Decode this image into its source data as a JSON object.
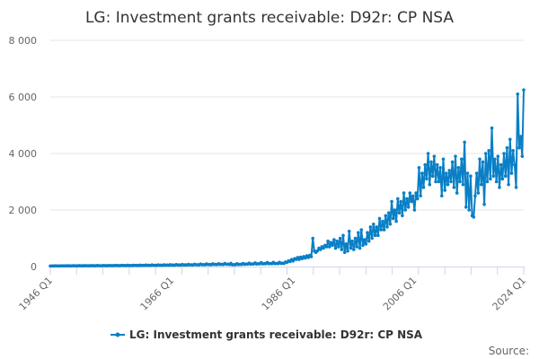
{
  "chart_data": {
    "type": "line",
    "title": "LG: Investment grants receivable: D92r: CP NSA",
    "xlabel": "",
    "ylabel": "",
    "start_period": "1946 Q1",
    "end_period": "2024 Q1",
    "frequency": "quarterly",
    "ylim": [
      0,
      8000
    ],
    "yticks": [
      0,
      2000,
      4000,
      6000,
      8000
    ],
    "ytick_labels": [
      "0",
      "2 000",
      "4 000",
      "6 000",
      "8 000"
    ],
    "xtick_labels": [
      "1946 Q1",
      "1966 Q1",
      "1986 Q1",
      "2006 Q1",
      "2024 Q1"
    ],
    "xtick_label_index": [
      0,
      80,
      160,
      240,
      312
    ],
    "grid": true,
    "legend_position": "bottom",
    "color": "#0a7fc6",
    "series": [
      {
        "name": "LG: Investment grants receivable: D92r: CP NSA",
        "values": [
          20,
          22,
          18,
          25,
          22,
          24,
          20,
          28,
          24,
          26,
          22,
          30,
          25,
          27,
          23,
          32,
          26,
          28,
          24,
          33,
          27,
          29,
          25,
          34,
          28,
          30,
          26,
          36,
          29,
          31,
          27,
          37,
          30,
          32,
          28,
          38,
          31,
          33,
          29,
          40,
          32,
          35,
          30,
          42,
          34,
          36,
          31,
          44,
          35,
          38,
          33,
          46,
          36,
          40,
          34,
          48,
          38,
          42,
          36,
          50,
          40,
          44,
          38,
          53,
          42,
          46,
          40,
          56,
          44,
          48,
          42,
          58,
          46,
          50,
          44,
          62,
          48,
          52,
          46,
          65,
          50,
          55,
          48,
          70,
          52,
          58,
          50,
          74,
          55,
          60,
          52,
          78,
          58,
          62,
          55,
          82,
          60,
          66,
          58,
          88,
          64,
          70,
          60,
          92,
          68,
          74,
          64,
          96,
          72,
          78,
          68,
          100,
          75,
          82,
          70,
          110,
          78,
          85,
          72,
          115,
          60,
          70,
          65,
          100,
          70,
          80,
          75,
          110,
          80,
          90,
          85,
          120,
          85,
          95,
          90,
          130,
          90,
          100,
          95,
          140,
          95,
          105,
          100,
          145,
          100,
          110,
          100,
          150,
          100,
          115,
          105,
          150,
          110,
          120,
          110,
          160,
          150,
          200,
          180,
          250,
          200,
          280,
          250,
          320,
          250,
          330,
          280,
          350,
          300,
          380,
          320,
          400,
          350,
          1000,
          550,
          500,
          550,
          650,
          600,
          700,
          650,
          750,
          700,
          900,
          700,
          850,
          750,
          950,
          650,
          900,
          700,
          1000,
          600,
          1100,
          500,
          800,
          550,
          1250,
          650,
          900,
          600,
          1000,
          700,
          1200,
          650,
          1300,
          750,
          950,
          800,
          1200,
          900,
          1400,
          1000,
          1500,
          1100,
          1400,
          1100,
          1700,
          1300,
          1600,
          1300,
          1800,
          1400,
          1900,
          1500,
          2300,
          1700,
          2000,
          1600,
          2400,
          1900,
          2300,
          1800,
          2600,
          2000,
          2400,
          2100,
          2600,
          2300,
          2500,
          2000,
          2600,
          2400,
          3500,
          2500,
          3300,
          2800,
          3600,
          3100,
          4000,
          2900,
          3700,
          3200,
          3900,
          3000,
          3600,
          3000,
          3500,
          2500,
          3800,
          2700,
          3300,
          2900,
          3400,
          3000,
          3700,
          2800,
          3900,
          2600,
          3500,
          3000,
          3800,
          2900,
          4400,
          2100,
          3300,
          2000,
          3200,
          1800,
          1750,
          2500,
          3300,
          2600,
          3800,
          2900,
          3700,
          2200,
          4000,
          3000,
          4100,
          3100,
          4900,
          3200,
          3800,
          3000,
          3900,
          2800,
          3600,
          3100,
          4000,
          3200,
          4200,
          2900,
          4500,
          3300,
          4100,
          3600,
          2800,
          6100,
          4200,
          4600,
          3900,
          6250
        ]
      }
    ],
    "source_label": "Source:"
  }
}
